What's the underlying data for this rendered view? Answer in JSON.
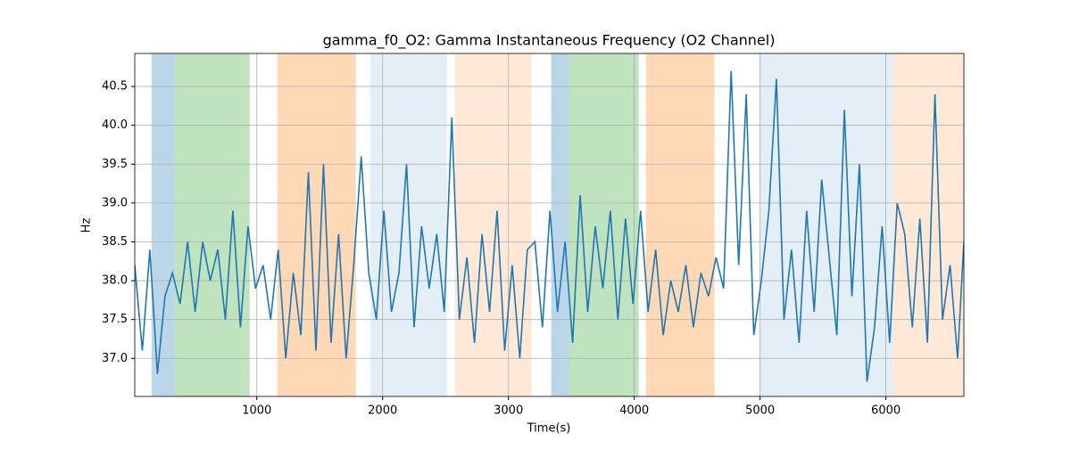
{
  "chart_data": {
    "type": "line",
    "title": "gamma_f0_O2: Gamma Instantaneous Frequency (O2 Channel)",
    "x_label": "Time(s)",
    "y_label": "Hz",
    "x": [
      30,
      90,
      150,
      210,
      270,
      330,
      390,
      450,
      510,
      570,
      630,
      690,
      750,
      810,
      870,
      930,
      990,
      1050,
      1110,
      1170,
      1230,
      1290,
      1350,
      1410,
      1470,
      1530,
      1590,
      1650,
      1710,
      1770,
      1830,
      1890,
      1950,
      2010,
      2070,
      2130,
      2190,
      2250,
      2310,
      2370,
      2430,
      2490,
      2550,
      2610,
      2670,
      2730,
      2790,
      2850,
      2910,
      2970,
      3030,
      3090,
      3150,
      3210,
      3270,
      3330,
      3390,
      3450,
      3510,
      3570,
      3630,
      3690,
      3750,
      3810,
      3870,
      3930,
      3990,
      4050,
      4110,
      4170,
      4230,
      4290,
      4350,
      4410,
      4470,
      4530,
      4590,
      4650,
      4710,
      4770,
      4830,
      4890,
      4950,
      5010,
      5070,
      5130,
      5190,
      5250,
      5310,
      5370,
      5430,
      5490,
      5550,
      5610,
      5670,
      5730,
      5790,
      5850,
      5910,
      5970,
      6030,
      6090,
      6150,
      6210,
      6270,
      6330,
      6390,
      6450,
      6510,
      6570,
      6620
    ],
    "series": [
      {
        "color": "#1f77b4",
        "values": [
          38.2,
          37.1,
          38.4,
          36.8,
          37.8,
          38.1,
          37.7,
          38.5,
          37.6,
          38.5,
          38.0,
          38.4,
          37.5,
          38.9,
          37.4,
          38.7,
          37.9,
          38.2,
          37.5,
          38.4,
          37.0,
          38.1,
          37.3,
          39.4,
          37.1,
          39.5,
          37.2,
          38.6,
          37.0,
          38.2,
          39.6,
          38.1,
          37.5,
          38.9,
          37.6,
          38.1,
          39.5,
          37.4,
          38.7,
          37.9,
          38.6,
          37.6,
          40.1,
          37.5,
          38.3,
          37.2,
          38.6,
          37.6,
          38.9,
          37.1,
          38.2,
          37.0,
          38.4,
          38.5,
          37.4,
          38.9,
          37.6,
          38.5,
          37.2,
          39.1,
          37.6,
          38.7,
          37.9,
          38.9,
          37.5,
          38.8,
          37.7,
          38.9,
          37.6,
          38.4,
          37.3,
          38.0,
          37.6,
          38.2,
          37.4,
          38.1,
          37.8,
          38.3,
          37.9,
          40.7,
          38.2,
          40.4,
          37.3,
          38.0,
          38.9,
          40.6,
          37.5,
          38.4,
          37.2,
          38.9,
          37.6,
          39.3,
          38.3,
          37.3,
          40.2,
          37.8,
          39.5,
          36.7,
          37.4,
          38.7,
          37.2,
          39.0,
          38.6,
          37.4,
          38.8,
          37.2,
          40.4,
          37.5,
          38.2,
          37.0,
          38.5
        ]
      }
    ],
    "regions": [
      {
        "start": 163,
        "end": 347,
        "color": "#1f77b4",
        "alpha": 0.3
      },
      {
        "start": 347,
        "end": 943,
        "color": "#2ca02c",
        "alpha": 0.3
      },
      {
        "start": 1163,
        "end": 1787,
        "color": "#ff7f0e",
        "alpha": 0.3
      },
      {
        "start": 1901,
        "end": 2511,
        "color": "#1f77b4",
        "alpha": 0.12
      },
      {
        "start": 2574,
        "end": 3184,
        "color": "#ff7f0e",
        "alpha": 0.17
      },
      {
        "start": 3340,
        "end": 3482,
        "color": "#1f77b4",
        "alpha": 0.3
      },
      {
        "start": 3482,
        "end": 4035,
        "color": "#2ca02c",
        "alpha": 0.3
      },
      {
        "start": 4092,
        "end": 4638,
        "color": "#ff7f0e",
        "alpha": 0.3
      },
      {
        "start": 4993,
        "end": 6057,
        "color": "#1f77b4",
        "alpha": 0.12
      },
      {
        "start": 6057,
        "end": 6620,
        "color": "#ff7f0e",
        "alpha": 0.17
      }
    ],
    "xlim": [
      30,
      6620
    ],
    "ylim": [
      36.51,
      40.925
    ],
    "xticks": [
      1000,
      2000,
      3000,
      4000,
      5000,
      6000
    ],
    "yticks": [
      {
        "value": 37,
        "label": "37.0"
      },
      37.5,
      {
        "value": 38,
        "label": "38.0"
      },
      38.5,
      {
        "value": 39,
        "label": "39.0"
      },
      39.5,
      {
        "value": 40,
        "label": "40.0"
      },
      40.5
    ],
    "grid": true
  }
}
